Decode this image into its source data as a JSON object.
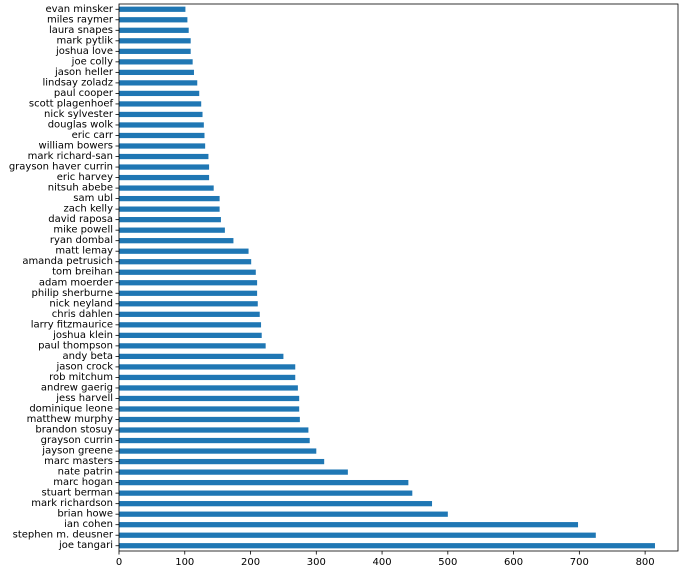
{
  "chart_data": {
    "type": "bar",
    "orientation": "horizontal",
    "categories": [
      "joe tangari",
      "stephen m. deusner",
      "ian cohen",
      "brian howe",
      "mark richardson",
      "stuart berman",
      "marc hogan",
      "nate patrin",
      "marc masters",
      "jayson greene",
      "grayson currin",
      "brandon stosuy",
      "matthew murphy",
      "dominique leone",
      "jess harvell",
      "andrew gaerig",
      "rob mitchum",
      "jason crock",
      "andy beta",
      "paul thompson",
      "joshua klein",
      "larry fitzmaurice",
      "chris dahlen",
      "nick neyland",
      "philip sherburne",
      "adam moerder",
      "tom breihan",
      "amanda petrusich",
      "matt lemay",
      "ryan dombal",
      "mike powell",
      "david raposa",
      "zach kelly",
      "sam ubl",
      "nitsuh abebe",
      "eric harvey",
      "grayson haver currin",
      "mark richard-san",
      "william bowers",
      "eric carr",
      "douglas wolk",
      "nick sylvester",
      "scott plagenhoef",
      "paul cooper",
      "lindsay zoladz",
      "jason heller",
      "joe colly",
      "joshua love",
      "mark pytlik",
      "laura snapes",
      "miles raymer",
      "evan minsker"
    ],
    "values": [
      815,
      725,
      698,
      500,
      476,
      446,
      440,
      348,
      312,
      300,
      290,
      288,
      275,
      274,
      274,
      272,
      268,
      268,
      250,
      223,
      217,
      216,
      214,
      211,
      210,
      210,
      208,
      201,
      197,
      174,
      161,
      155,
      153,
      153,
      144,
      137,
      137,
      136,
      131,
      130,
      129,
      127,
      125,
      122,
      119,
      114,
      112,
      109,
      109,
      106,
      104,
      101
    ],
    "xlim": [
      0,
      850
    ],
    "xticks": [
      "0",
      "100",
      "200",
      "300",
      "400",
      "500",
      "600",
      "700",
      "800"
    ],
    "bar_color": "#1f77b4",
    "grid": false,
    "legend": false,
    "title": "",
    "xlabel": "",
    "ylabel": ""
  }
}
